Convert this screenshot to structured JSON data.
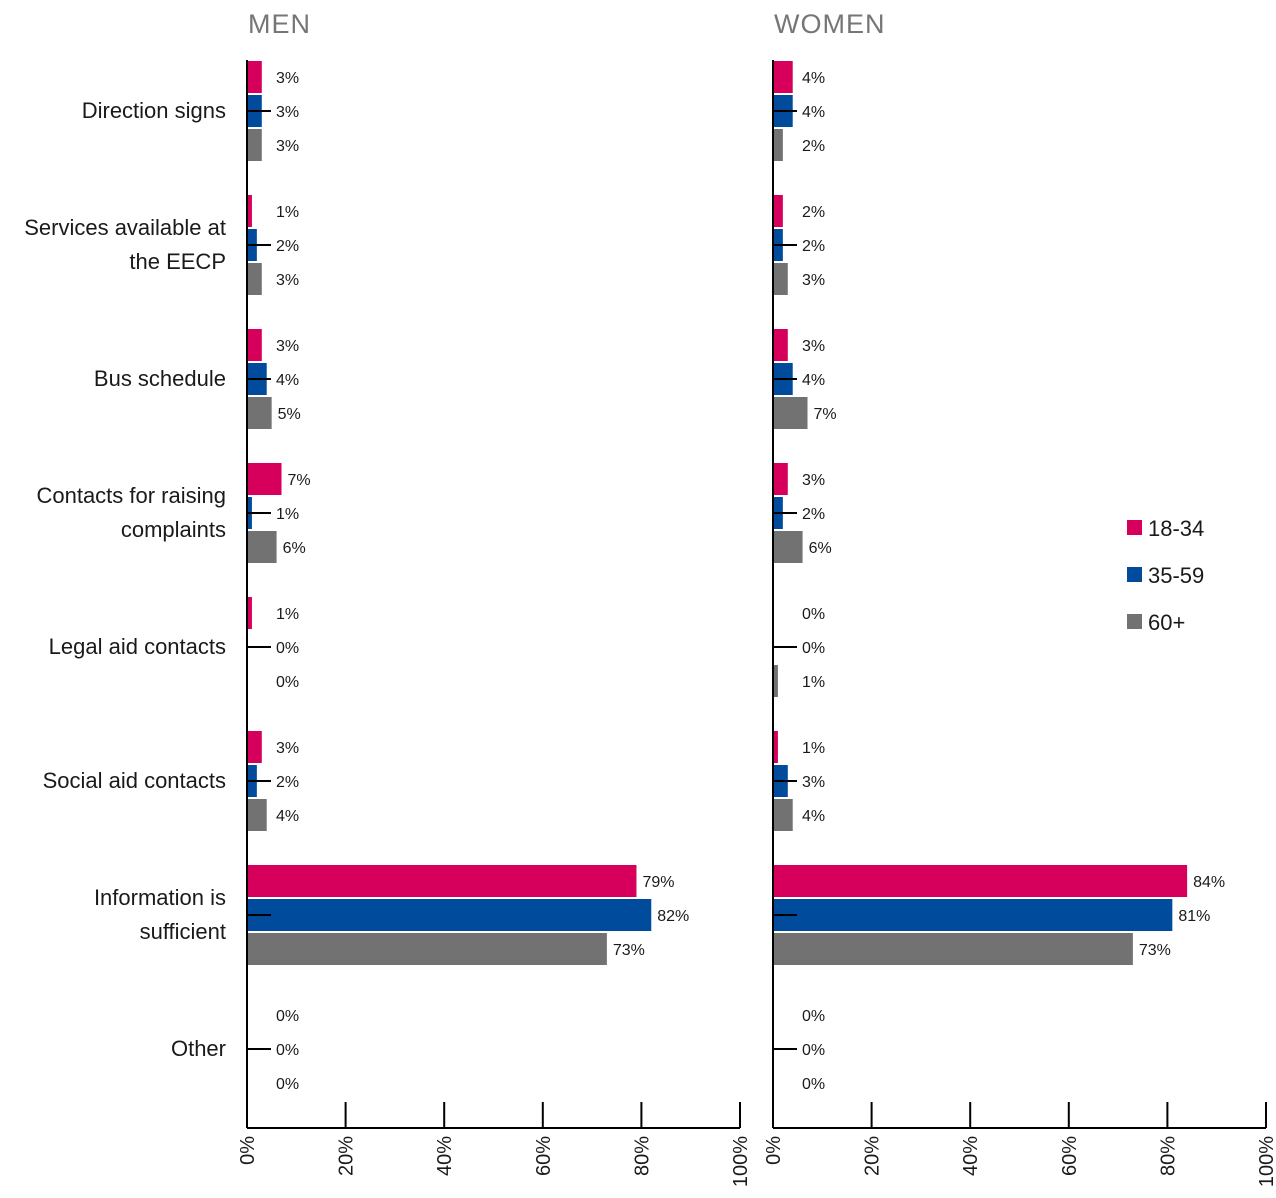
{
  "chart_data": {
    "type": "bar",
    "orientation": "horizontal",
    "categories": [
      "Direction signs",
      "Services available at the EECP",
      "Bus schedule",
      "Contacts for raising complaints",
      "Legal aid contacts",
      "Social aid contacts",
      "Information is sufficient",
      "Other"
    ],
    "category_lines": [
      [
        "Direction signs"
      ],
      [
        "Services available at",
        "the EECP"
      ],
      [
        "Bus schedule"
      ],
      [
        "Contacts for raising",
        "complaints"
      ],
      [
        "Legal aid contacts"
      ],
      [
        "Social aid contacts"
      ],
      [
        "Information is",
        "sufficient"
      ],
      [
        "Other"
      ]
    ],
    "panels": [
      {
        "title": "MEN",
        "series": [
          {
            "name": "18-34",
            "values": [
              3,
              1,
              3,
              7,
              1,
              3,
              79,
              0
            ]
          },
          {
            "name": "35-59",
            "values": [
              3,
              2,
              4,
              1,
              0,
              2,
              82,
              0
            ]
          },
          {
            "name": "60+",
            "values": [
              3,
              3,
              5,
              6,
              0,
              4,
              73,
              0
            ]
          }
        ]
      },
      {
        "title": "WOMEN",
        "series": [
          {
            "name": "18-34",
            "values": [
              4,
              2,
              3,
              3,
              0,
              1,
              84,
              0
            ]
          },
          {
            "name": "35-59",
            "values": [
              4,
              2,
              4,
              2,
              0,
              3,
              81,
              0
            ]
          },
          {
            "name": "60+",
            "values": [
              2,
              3,
              7,
              6,
              1,
              4,
              73,
              0
            ]
          }
        ]
      }
    ],
    "value_labels": {
      "MEN": [
        [
          "3%",
          "1%",
          "3%",
          "7%",
          "1%",
          "3%",
          "79%",
          "0%"
        ],
        [
          "3%",
          "2%",
          "4%",
          "1%",
          "0%",
          "2%",
          "82%",
          "0%"
        ],
        [
          "3%",
          "3%",
          "5%",
          "6%",
          "0%",
          "4%",
          "73%",
          "0%"
        ]
      ],
      "WOMEN": [
        [
          "4%",
          "2%",
          "3%",
          "3%",
          "0%",
          "1%",
          "84%",
          "0%"
        ],
        [
          "4%",
          "2%",
          "4%",
          "2%",
          "0%",
          "3%",
          "81%",
          "0%"
        ],
        [
          "2%",
          "3%",
          "7%",
          "6%",
          "1%",
          "4%",
          "73%",
          "0%"
        ]
      ]
    },
    "colors": {
      "18-34": "#d6005c",
      "35-59": "#004b9c",
      "60+": "#727272"
    },
    "xlim": [
      0,
      100
    ],
    "x_ticks": [
      "0%",
      "20%",
      "40%",
      "60%",
      "80%",
      "100%"
    ],
    "legend": {
      "position": "right",
      "entries": [
        "18-34",
        "35-59",
        "60+"
      ]
    },
    "grid": false
  }
}
